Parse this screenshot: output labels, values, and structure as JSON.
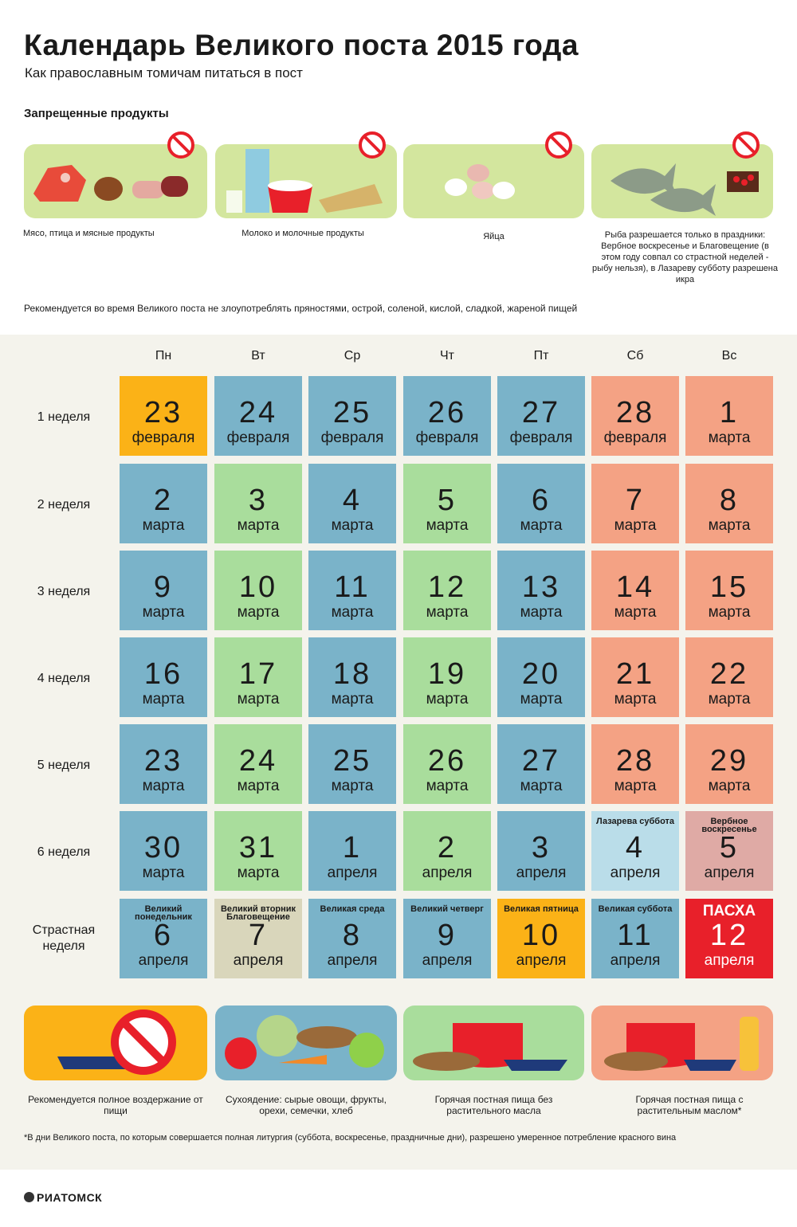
{
  "title": "Календарь Великого поста 2015 года",
  "subtitle": "Как православным томичам питаться в пост",
  "forbidden": {
    "heading": "Запрещенные продукты",
    "items": [
      {
        "icon": "meat-icon",
        "caption": "Мясо, птица и мясные продукты"
      },
      {
        "icon": "milk-icon",
        "caption": "Молоко и молочные продукты"
      },
      {
        "icon": "eggs-icon",
        "caption": "Яйца"
      },
      {
        "icon": "fish-icon",
        "caption": "Рыба разрешается только в праздники: Вербное воскресенье и Благовещение (в этом году совпал со страстной неделей - рыбу нельзя), в Лазареву субботу разрешена икра"
      }
    ]
  },
  "note": "Рекомендуется во время Великого поста не злоупотреблять пряностями, острой, соленой, кислой, сладкой, жареной пищей",
  "colors": {
    "fast": "#fbb217",
    "dry": "#7ab3c9",
    "hot": "#a9dd9c",
    "oil": "#f4a284",
    "lazarus": "#badde9",
    "palm": "#dfaaa5",
    "annunciation": "#d9d6bb",
    "easter": "#e8202a"
  },
  "days": [
    "Пн",
    "Вт",
    "Ср",
    "Чт",
    "Пт",
    "Сб",
    "Вс"
  ],
  "weeks": [
    {
      "label": "1 неделя",
      "cells": [
        {
          "n": "23",
          "m": "февраля",
          "c": "fast"
        },
        {
          "n": "24",
          "m": "февраля",
          "c": "dry"
        },
        {
          "n": "25",
          "m": "февраля",
          "c": "dry"
        },
        {
          "n": "26",
          "m": "февраля",
          "c": "dry"
        },
        {
          "n": "27",
          "m": "февраля",
          "c": "dry"
        },
        {
          "n": "28",
          "m": "февраля",
          "c": "oil"
        },
        {
          "n": "1",
          "m": "марта",
          "c": "oil"
        }
      ]
    },
    {
      "label": "2 неделя",
      "cells": [
        {
          "n": "2",
          "m": "марта",
          "c": "dry"
        },
        {
          "n": "3",
          "m": "марта",
          "c": "hot"
        },
        {
          "n": "4",
          "m": "марта",
          "c": "dry"
        },
        {
          "n": "5",
          "m": "марта",
          "c": "hot"
        },
        {
          "n": "6",
          "m": "марта",
          "c": "dry"
        },
        {
          "n": "7",
          "m": "марта",
          "c": "oil"
        },
        {
          "n": "8",
          "m": "марта",
          "c": "oil"
        }
      ]
    },
    {
      "label": "3 неделя",
      "cells": [
        {
          "n": "9",
          "m": "марта",
          "c": "dry"
        },
        {
          "n": "10",
          "m": "марта",
          "c": "hot"
        },
        {
          "n": "11",
          "m": "марта",
          "c": "dry"
        },
        {
          "n": "12",
          "m": "марта",
          "c": "hot"
        },
        {
          "n": "13",
          "m": "марта",
          "c": "dry"
        },
        {
          "n": "14",
          "m": "марта",
          "c": "oil"
        },
        {
          "n": "15",
          "m": "марта",
          "c": "oil"
        }
      ]
    },
    {
      "label": "4 неделя",
      "cells": [
        {
          "n": "16",
          "m": "марта",
          "c": "dry"
        },
        {
          "n": "17",
          "m": "марта",
          "c": "hot"
        },
        {
          "n": "18",
          "m": "марта",
          "c": "dry"
        },
        {
          "n": "19",
          "m": "марта",
          "c": "hot"
        },
        {
          "n": "20",
          "m": "марта",
          "c": "dry"
        },
        {
          "n": "21",
          "m": "марта",
          "c": "oil"
        },
        {
          "n": "22",
          "m": "марта",
          "c": "oil"
        }
      ]
    },
    {
      "label": "5 неделя",
      "cells": [
        {
          "n": "23",
          "m": "марта",
          "c": "dry"
        },
        {
          "n": "24",
          "m": "марта",
          "c": "hot"
        },
        {
          "n": "25",
          "m": "марта",
          "c": "dry"
        },
        {
          "n": "26",
          "m": "марта",
          "c": "hot"
        },
        {
          "n": "27",
          "m": "марта",
          "c": "dry"
        },
        {
          "n": "28",
          "m": "марта",
          "c": "oil"
        },
        {
          "n": "29",
          "m": "марта",
          "c": "oil"
        }
      ]
    },
    {
      "label": "6 неделя",
      "cells": [
        {
          "n": "30",
          "m": "марта",
          "c": "dry"
        },
        {
          "n": "31",
          "m": "марта",
          "c": "hot"
        },
        {
          "n": "1",
          "m": "апреля",
          "c": "dry"
        },
        {
          "n": "2",
          "m": "апреля",
          "c": "hot"
        },
        {
          "n": "3",
          "m": "апреля",
          "c": "dry"
        },
        {
          "n": "4",
          "m": "апреля",
          "c": "lazarus",
          "t": "Лазарева суббота"
        },
        {
          "n": "5",
          "m": "апреля",
          "c": "palm",
          "t": "Вербное воскресенье"
        }
      ]
    },
    {
      "label": "Страстная неделя",
      "cells": [
        {
          "n": "6",
          "m": "апреля",
          "c": "dry",
          "t": "Великий понедельник"
        },
        {
          "n": "7",
          "m": "апреля",
          "c": "annunciation",
          "t": "Великий вторник Благовещение"
        },
        {
          "n": "8",
          "m": "апреля",
          "c": "dry",
          "t": "Великая среда"
        },
        {
          "n": "9",
          "m": "апреля",
          "c": "dry",
          "t": "Великий четверг"
        },
        {
          "n": "10",
          "m": "апреля",
          "c": "fast",
          "t": "Великая пятница"
        },
        {
          "n": "11",
          "m": "апреля",
          "c": "dry",
          "t": "Великая суббота"
        },
        {
          "n": "12",
          "m": "апреля",
          "c": "easter",
          "t": "ПАСХА"
        }
      ]
    }
  ],
  "legend": [
    {
      "c": "fast",
      "caption": "Рекомендуется полное воздержание от пищи"
    },
    {
      "c": "dry",
      "caption": "Сухоядение: сырые овощи, фрукты, орехи, семечки, хлеб"
    },
    {
      "c": "hot",
      "caption": "Горячая постная пища без растительного масла"
    },
    {
      "c": "oil",
      "caption": "Горячая постная пища с растительным маслом*"
    }
  ],
  "footnote": "*В дни Великого поста, по которым совершается полная литургия (суббота, воскресенье, праздничные дни), разрешено умеренное потребление красного вина",
  "logo": "РИАТОМСК"
}
